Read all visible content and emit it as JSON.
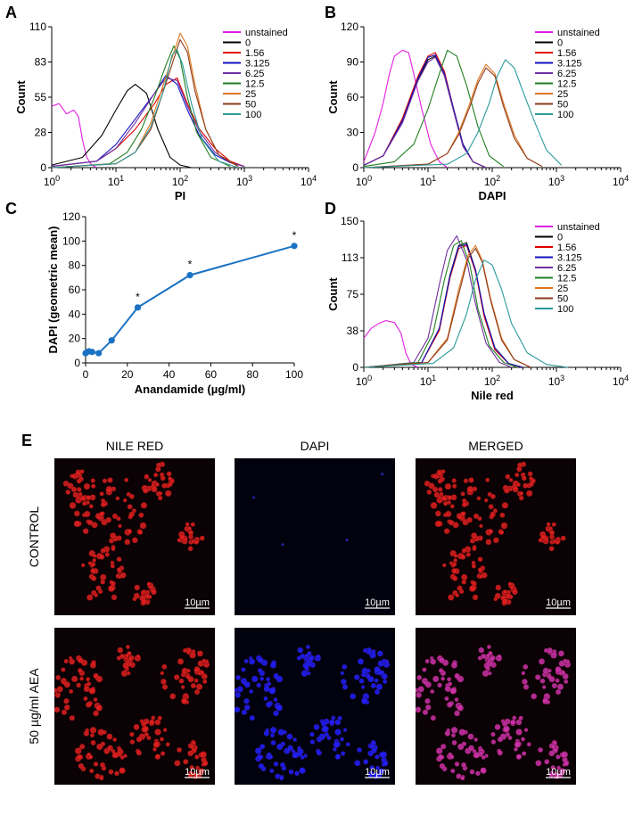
{
  "colors": {
    "unstained": "#e01ee0",
    "0": "#000000",
    "1.56": "#e00000",
    "3.125": "#1010c0",
    "6.25": "#7030a0",
    "12.5": "#208020",
    "25": "#e07820",
    "50": "#8b3a1a",
    "100": "#2a9a9a",
    "line_c": "#1a72c4",
    "nile_red": "#e02020",
    "dapi_blue": "#2020ff",
    "merged": "#cc33aa"
  },
  "legend_labels": [
    "unstained",
    "0",
    "1.56",
    "3.125",
    "6.25",
    "12.5",
    "25",
    "50",
    "100"
  ],
  "chart_data": [
    {
      "panel": "A",
      "type": "line",
      "xscale": "log",
      "xlim": [
        1,
        10000
      ],
      "ylim": [
        0,
        110
      ],
      "xlabel": "PI",
      "ylabel": "Count",
      "yticks": [
        "0",
        "28",
        "55",
        "83",
        "110"
      ],
      "xticks": [
        "10^0",
        "10^1",
        "10^2",
        "10^3",
        "10^4"
      ],
      "series": [
        {
          "name": "unstained",
          "x": [
            1,
            1.3,
            1.7,
            2.2,
            2.6,
            3.0,
            3.5,
            4.2,
            5
          ],
          "y": [
            48,
            50,
            42,
            45,
            40,
            22,
            8,
            2,
            0
          ]
        },
        {
          "name": "0",
          "x": [
            1,
            3,
            6,
            10,
            15,
            20,
            30,
            45,
            70,
            100,
            150
          ],
          "y": [
            2,
            8,
            25,
            45,
            60,
            65,
            58,
            30,
            8,
            2,
            0
          ]
        },
        {
          "name": "1.56",
          "x": [
            1,
            5,
            10,
            20,
            40,
            60,
            90,
            130,
            200,
            350,
            600,
            1000
          ],
          "y": [
            1,
            5,
            15,
            30,
            50,
            65,
            70,
            50,
            30,
            15,
            5,
            1
          ]
        },
        {
          "name": "3.125",
          "x": [
            1,
            5,
            10,
            20,
            40,
            60,
            90,
            130,
            200,
            350,
            600,
            1000
          ],
          "y": [
            1,
            5,
            18,
            38,
            58,
            72,
            65,
            45,
            25,
            10,
            4,
            1
          ]
        },
        {
          "name": "6.25",
          "x": [
            1,
            5,
            10,
            20,
            40,
            60,
            90,
            130,
            200,
            350,
            600,
            1000
          ],
          "y": [
            1,
            5,
            15,
            35,
            58,
            70,
            68,
            48,
            28,
            12,
            4,
            1
          ]
        },
        {
          "name": "12.5",
          "x": [
            1,
            8,
            15,
            25,
            40,
            60,
            80,
            100,
            130,
            180,
            300,
            600
          ],
          "y": [
            0,
            3,
            12,
            30,
            55,
            80,
            95,
            85,
            55,
            28,
            8,
            1
          ]
        },
        {
          "name": "25",
          "x": [
            1,
            10,
            20,
            35,
            55,
            80,
            100,
            130,
            170,
            250,
            400,
            800
          ],
          "y": [
            0,
            3,
            12,
            35,
            65,
            90,
            105,
            95,
            65,
            30,
            10,
            1
          ]
        },
        {
          "name": "50",
          "x": [
            1,
            10,
            20,
            35,
            55,
            80,
            100,
            130,
            170,
            250,
            400,
            800
          ],
          "y": [
            0,
            3,
            12,
            30,
            60,
            85,
            100,
            90,
            60,
            30,
            10,
            1
          ]
        },
        {
          "name": "100",
          "x": [
            1,
            10,
            20,
            35,
            55,
            75,
            90,
            110,
            150,
            220,
            400,
            800
          ],
          "y": [
            0,
            3,
            12,
            32,
            60,
            88,
            92,
            80,
            50,
            22,
            5,
            0
          ]
        }
      ]
    },
    {
      "panel": "B",
      "type": "line",
      "xscale": "log",
      "xlim": [
        1,
        10000
      ],
      "ylim": [
        0,
        120
      ],
      "xlabel": "DAPI",
      "ylabel": "Count",
      "yticks": [
        "0",
        "30",
        "60",
        "90",
        "120"
      ],
      "xticks": [
        "10^0",
        "10^1",
        "10^2",
        "10^3",
        "10^4"
      ],
      "series": [
        {
          "name": "unstained",
          "x": [
            1,
            1.5,
            2,
            2.5,
            3,
            4,
            5,
            6,
            8,
            11,
            15,
            20
          ],
          "y": [
            5,
            30,
            55,
            80,
            95,
            100,
            98,
            80,
            50,
            20,
            5,
            0
          ]
        },
        {
          "name": "0",
          "x": [
            1,
            2,
            4,
            7,
            10,
            13,
            18,
            25,
            35,
            50,
            80
          ],
          "y": [
            2,
            10,
            40,
            75,
            92,
            95,
            80,
            50,
            20,
            5,
            0
          ]
        },
        {
          "name": "1.56",
          "x": [
            1,
            2,
            4,
            7,
            10,
            13,
            18,
            25,
            35,
            50,
            80
          ],
          "y": [
            2,
            10,
            42,
            78,
            95,
            98,
            82,
            50,
            20,
            5,
            0
          ]
        },
        {
          "name": "3.125",
          "x": [
            1,
            2,
            4,
            7,
            10,
            13,
            18,
            25,
            35,
            50,
            80
          ],
          "y": [
            2,
            10,
            40,
            76,
            94,
            96,
            80,
            50,
            20,
            5,
            0
          ]
        },
        {
          "name": "6.25",
          "x": [
            1,
            2,
            4,
            7,
            10,
            13,
            18,
            25,
            35,
            50,
            80
          ],
          "y": [
            2,
            10,
            38,
            74,
            90,
            94,
            78,
            48,
            18,
            5,
            0
          ]
        },
        {
          "name": "12.5",
          "x": [
            1,
            3,
            6,
            10,
            15,
            20,
            28,
            40,
            60,
            90,
            150
          ],
          "y": [
            1,
            5,
            20,
            50,
            80,
            100,
            95,
            70,
            35,
            10,
            1
          ]
        },
        {
          "name": "25",
          "x": [
            1,
            10,
            20,
            30,
            45,
            60,
            80,
            110,
            150,
            220,
            350,
            600
          ],
          "y": [
            0,
            3,
            12,
            30,
            55,
            75,
            88,
            80,
            55,
            28,
            8,
            1
          ]
        },
        {
          "name": "50",
          "x": [
            1,
            10,
            20,
            30,
            45,
            60,
            80,
            110,
            150,
            220,
            350,
            600
          ],
          "y": [
            0,
            3,
            12,
            28,
            52,
            72,
            85,
            78,
            52,
            25,
            8,
            1
          ]
        },
        {
          "name": "100",
          "x": [
            1,
            20,
            40,
            60,
            90,
            120,
            160,
            220,
            300,
            450,
            700,
            1200
          ],
          "y": [
            0,
            3,
            12,
            30,
            55,
            78,
            92,
            85,
            65,
            40,
            15,
            2
          ]
        }
      ]
    },
    {
      "panel": "C",
      "type": "line",
      "xlim": [
        0,
        100
      ],
      "ylim": [
        0,
        120
      ],
      "xlabel": "Anandamide (µg/ml)",
      "ylabel": "DAPI (geometric mean)",
      "xticks": [
        "0",
        "20",
        "40",
        "60",
        "80",
        "100"
      ],
      "yticks": [
        "0",
        "20",
        "40",
        "60",
        "80",
        "100",
        "120"
      ],
      "series": [
        {
          "x": [
            0,
            1.56,
            3.125,
            6.25,
            12.5,
            25,
            50,
            100
          ],
          "y": [
            8,
            9.5,
            9,
            8,
            18.5,
            45.5,
            72,
            96
          ]
        }
      ],
      "significance_marker": "*",
      "significant_x": [
        25,
        50,
        100
      ]
    },
    {
      "panel": "D",
      "type": "line",
      "xscale": "log",
      "xlim": [
        1,
        10000
      ],
      "ylim": [
        0,
        150
      ],
      "xlabel": "Nile red",
      "ylabel": "Count",
      "yticks": [
        "0",
        "38",
        "75",
        "113",
        "150"
      ],
      "xticks": [
        "10^0",
        "10^1",
        "10^2",
        "10^3",
        "10^4"
      ],
      "series": [
        {
          "name": "unstained",
          "x": [
            1,
            1.3,
            1.7,
            2.2,
            3,
            3.8,
            4.5,
            5.5,
            7
          ],
          "y": [
            30,
            40,
            45,
            48,
            46,
            35,
            15,
            3,
            0
          ]
        },
        {
          "name": "0",
          "x": [
            1,
            8,
            15,
            22,
            30,
            40,
            55,
            75,
            110,
            180,
            300
          ],
          "y": [
            0,
            5,
            40,
            95,
            125,
            128,
            100,
            55,
            20,
            4,
            0
          ]
        },
        {
          "name": "1.56",
          "x": [
            1,
            8,
            15,
            22,
            30,
            40,
            55,
            75,
            110,
            180,
            300
          ],
          "y": [
            0,
            5,
            38,
            92,
            122,
            125,
            98,
            52,
            18,
            4,
            0
          ]
        },
        {
          "name": "3.125",
          "x": [
            1,
            8,
            15,
            22,
            30,
            40,
            55,
            75,
            110,
            180,
            300
          ],
          "y": [
            0,
            5,
            40,
            94,
            124,
            126,
            100,
            55,
            20,
            4,
            0
          ]
        },
        {
          "name": "6.25",
          "x": [
            1,
            6,
            10,
            15,
            20,
            28,
            40,
            55,
            80,
            130,
            200
          ],
          "y": [
            0,
            5,
            30,
            85,
            120,
            135,
            110,
            65,
            25,
            5,
            0
          ]
        },
        {
          "name": "12.5",
          "x": [
            1,
            7,
            12,
            18,
            25,
            33,
            45,
            60,
            90,
            150,
            250
          ],
          "y": [
            0,
            5,
            35,
            90,
            125,
            130,
            105,
            60,
            22,
            5,
            0
          ]
        },
        {
          "name": "25",
          "x": [
            1,
            10,
            20,
            30,
            42,
            55,
            70,
            95,
            140,
            220,
            400
          ],
          "y": [
            0,
            5,
            30,
            80,
            115,
            125,
            110,
            70,
            30,
            8,
            0
          ]
        },
        {
          "name": "50",
          "x": [
            1,
            10,
            20,
            30,
            42,
            55,
            70,
            95,
            140,
            220,
            400
          ],
          "y": [
            0,
            5,
            28,
            75,
            112,
            122,
            108,
            68,
            28,
            8,
            0
          ]
        },
        {
          "name": "100",
          "x": [
            1,
            12,
            25,
            40,
            55,
            75,
            100,
            140,
            200,
            350,
            700,
            1500
          ],
          "y": [
            0,
            4,
            20,
            55,
            90,
            110,
            105,
            80,
            45,
            15,
            3,
            0
          ]
        }
      ]
    }
  ],
  "panels": {
    "A": "A",
    "B": "B",
    "C": "C",
    "D": "D",
    "E": "E"
  },
  "microscopy": {
    "columns": [
      "NILE RED",
      "DAPI",
      "MERGED"
    ],
    "rows": [
      "CONTROL",
      "50 µg/ml AEA"
    ],
    "scale_bar": "10µm"
  }
}
